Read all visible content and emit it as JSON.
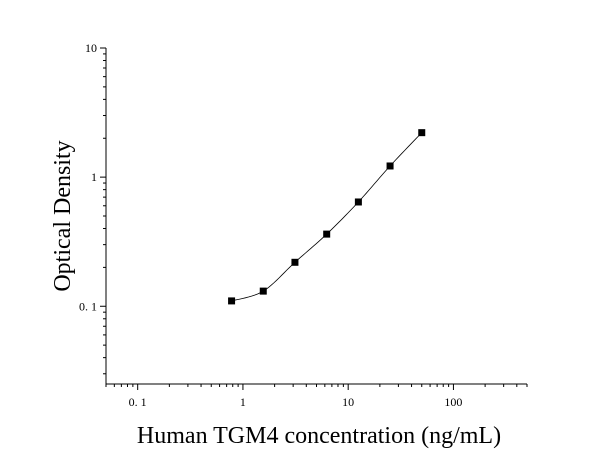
{
  "chart_data": {
    "type": "scatter",
    "title": "",
    "xlabel": "Human TGM4 concentration (ng/mL)",
    "ylabel": "Optical Density",
    "x_scale": "log",
    "y_scale": "log",
    "xlim": [
      0.05,
      500
    ],
    "ylim": [
      0.025,
      10
    ],
    "x_ticks": [
      {
        "value": 0.1,
        "label": "0. 1"
      },
      {
        "value": 1,
        "label": "1"
      },
      {
        "value": 10,
        "label": "10"
      },
      {
        "value": 100,
        "label": "100"
      }
    ],
    "y_ticks": [
      {
        "value": 0.1,
        "label": "0. 1"
      },
      {
        "value": 1,
        "label": "1"
      },
      {
        "value": 10,
        "label": "10"
      }
    ],
    "grid": false,
    "legend": "none",
    "series": [
      {
        "marker": "square",
        "color": "#000000",
        "x": [
          0.78,
          1.56,
          3.12,
          6.25,
          12.5,
          25,
          50
        ],
        "y": [
          0.11,
          0.131,
          0.219,
          0.362,
          0.642,
          1.22,
          2.21
        ]
      }
    ],
    "fit_curve": {
      "type": "smooth",
      "color": "#000000"
    }
  }
}
